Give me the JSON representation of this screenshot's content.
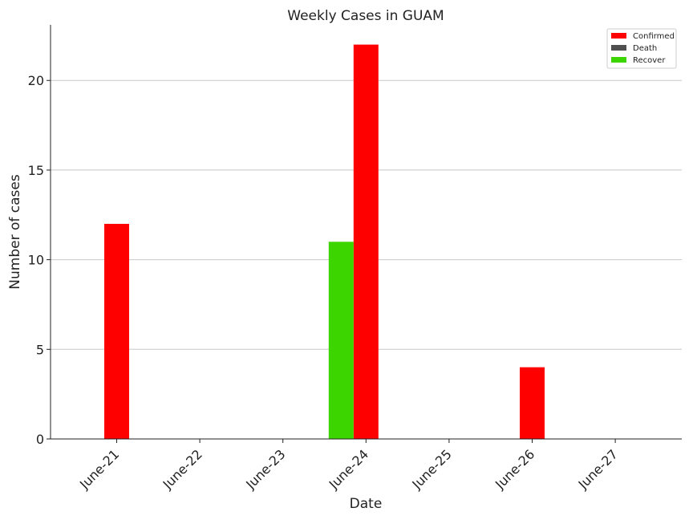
{
  "chart_data": {
    "type": "bar",
    "title": "Weekly Cases in GUAM",
    "xlabel": "Date",
    "ylabel": "Number of cases",
    "categories": [
      "June-21",
      "June-22",
      "June-23",
      "June-24",
      "June-25",
      "June-26",
      "June-27"
    ],
    "series": [
      {
        "name": "Confirmed",
        "color": "#ff0000",
        "values": [
          12,
          0,
          0,
          22,
          0,
          4,
          0
        ]
      },
      {
        "name": "Death",
        "color": "#505050",
        "values": [
          0,
          0,
          0,
          0,
          0,
          0,
          0
        ]
      },
      {
        "name": "Recover",
        "color": "#3cd500",
        "values": [
          0,
          0,
          0,
          11,
          0,
          0,
          0
        ]
      }
    ],
    "yticks": [
      0,
      5,
      10,
      15,
      20
    ],
    "ylim": [
      0,
      23.1
    ],
    "grid": "horizontal",
    "legend_position": "top-right"
  }
}
